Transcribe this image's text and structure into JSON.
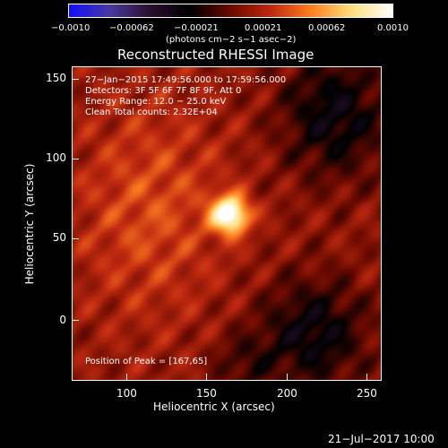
{
  "colorbar": {
    "ticks": [
      "−0.0010",
      "−0.00062",
      "−0.00021",
      "0.00021",
      "0.00062",
      "0.0010"
    ],
    "unit_label": "(photons cm−2 s−1 asec−2)"
  },
  "image_title": "Reconstructed RHESSI Image",
  "info": {
    "time_range": "27−Jan−2015 17:49:56.000 to 17:59:56.000",
    "detectors": "Detectors: 3F 5F 6F 7F 8F 9F, Att 0",
    "energy_range": "Energy Range: 12.0 − 25.0 keV",
    "clean_counts": "Clean    Total counts: 2.32E+04",
    "peak_position": "Position of Peak = [167,65]"
  },
  "axes": {
    "xlabel": "Heliocentric X (arcsec)",
    "ylabel": "Heliocentric Y (arcsec)",
    "x_ticks": [
      "100",
      "150",
      "200",
      "250"
    ],
    "y_ticks": [
      "150",
      "100",
      "50",
      "0"
    ]
  },
  "footer_date": "21−Jul−2017 10:00",
  "colors": {
    "background": "#000000",
    "colormap": [
      "#1010ff",
      "#4a3aa0",
      "#2a1030",
      "#000000",
      "#6a0a00",
      "#c02a10",
      "#ff8020",
      "#ffe080",
      "#ffffff"
    ]
  }
}
